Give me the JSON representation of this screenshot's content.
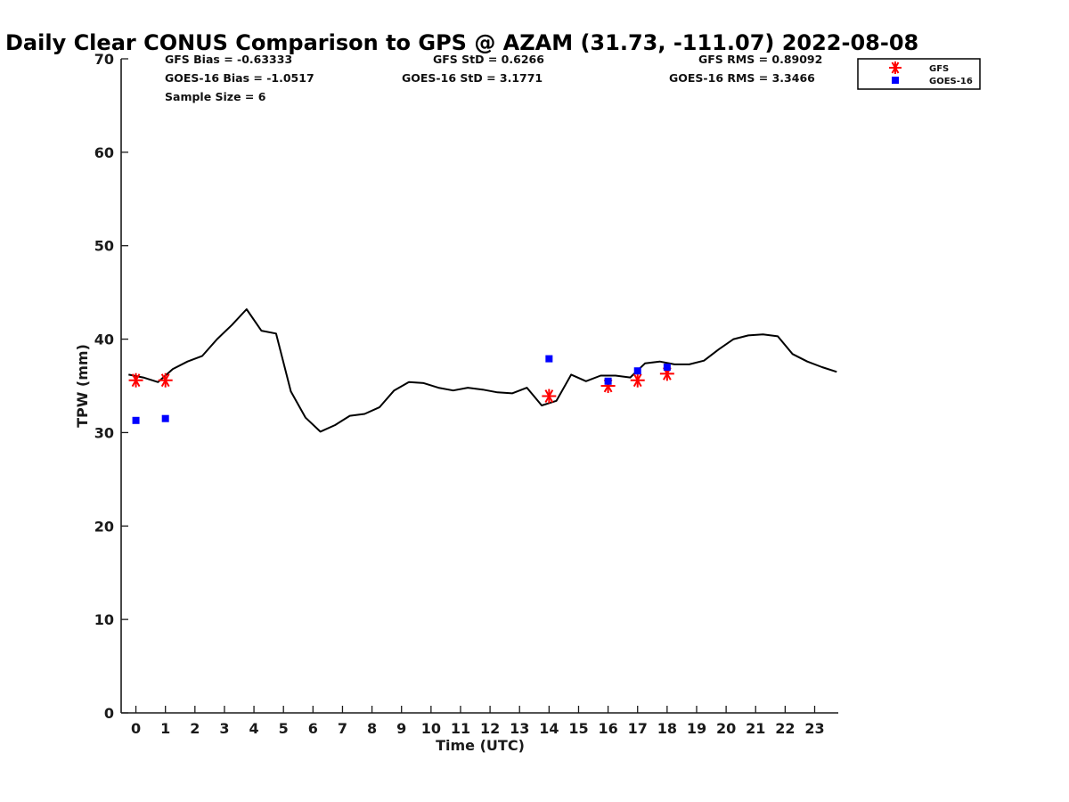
{
  "chart_data": {
    "type": "scatter",
    "title": "Daily Clear CONUS Comparison to GPS @ AZAM (31.73, -111.07) 2022-08-08",
    "xlabel": "Time (UTC)",
    "ylabel": "TPW (mm)",
    "xlim": [
      -0.5,
      23.8
    ],
    "ylim": [
      0,
      70
    ],
    "yticks": [
      0,
      10,
      20,
      30,
      40,
      50,
      60,
      70
    ],
    "xticks": [
      0,
      1,
      2,
      3,
      4,
      5,
      6,
      7,
      8,
      9,
      10,
      11,
      12,
      13,
      14,
      15,
      16,
      17,
      18,
      19,
      20,
      21,
      22,
      23
    ],
    "xtick_labels": [
      "0",
      "1",
      "2",
      "3",
      "4",
      "5",
      "6",
      "7",
      "8",
      "9",
      "10",
      "11",
      "12",
      "13",
      "14",
      "15",
      "16",
      "17",
      "18",
      "19",
      "20",
      "21",
      "22",
      "23"
    ],
    "grid": false,
    "legend_position": "top-right",
    "stats": {
      "row1": [
        "GFS Bias = -0.63333",
        "GFS StD = 0.6266",
        "GFS RMS = 0.89092"
      ],
      "row2": [
        "GOES-16 Bias = -1.0517",
        "GOES-16 StD = 3.1771",
        "GOES-16 RMS = 3.3466"
      ],
      "row3": "Sample Size = 6"
    },
    "gps_line": {
      "color": "#000000",
      "x": [
        -0.25,
        0.25,
        0.75,
        1.25,
        1.75,
        2.25,
        2.75,
        3.25,
        3.75,
        4.25,
        4.75,
        5.25,
        5.75,
        6.25,
        6.75,
        7.25,
        7.75,
        8.25,
        8.75,
        9.25,
        9.75,
        10.25,
        10.75,
        11.25,
        11.75,
        12.25,
        12.75,
        13.25,
        13.75,
        14.25,
        14.75,
        15.25,
        15.75,
        16.25,
        16.75,
        17.25,
        17.75,
        18.25,
        18.75,
        19.25,
        19.75,
        20.25,
        20.75,
        21.25,
        21.75,
        22.25,
        22.75,
        23.25,
        23.75
      ],
      "y": [
        36.2,
        35.9,
        35.4,
        36.8,
        37.6,
        38.2,
        40.0,
        41.5,
        43.2,
        40.9,
        40.6,
        34.4,
        31.6,
        30.1,
        30.8,
        31.8,
        32.0,
        32.7,
        34.5,
        35.4,
        35.3,
        34.8,
        34.5,
        34.8,
        34.6,
        34.3,
        34.2,
        34.8,
        32.9,
        33.4,
        36.2,
        35.5,
        36.1,
        36.1,
        35.9,
        37.4,
        37.6,
        37.3,
        37.3,
        37.7,
        38.9,
        40.0,
        40.4,
        40.5,
        40.3,
        38.4,
        37.6,
        37.0,
        36.5
      ]
    },
    "series": [
      {
        "name": "GFS",
        "marker": "asterisk",
        "color": "#ff0000",
        "x": [
          0,
          1,
          14,
          16,
          17,
          18
        ],
        "y": [
          35.6,
          35.6,
          33.9,
          35.0,
          35.6,
          36.3
        ]
      },
      {
        "name": "GOES-16",
        "marker": "square",
        "color": "#0000ff",
        "x": [
          0,
          1,
          14,
          16,
          17,
          18
        ],
        "y": [
          31.3,
          31.5,
          37.9,
          35.5,
          36.6,
          37.0
        ]
      }
    ]
  }
}
